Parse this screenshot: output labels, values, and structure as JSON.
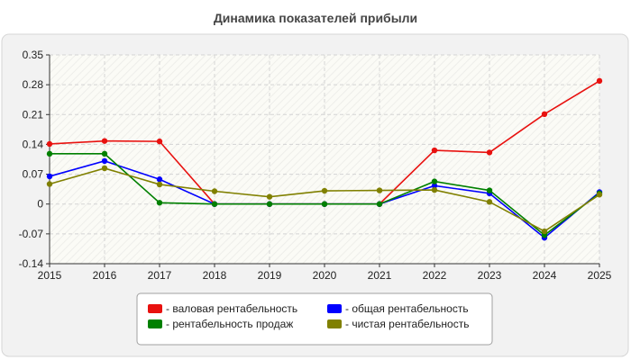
{
  "chart_data": {
    "type": "line",
    "title": "Динамика показателей прибыли",
    "xlabel": "",
    "ylabel": "",
    "x": [
      "2015",
      "2016",
      "2017",
      "2018",
      "2019",
      "2020",
      "2021",
      "2022",
      "2023",
      "2024",
      "2025"
    ],
    "ylim": [
      -0.14,
      0.35
    ],
    "yticks": [
      "0.35",
      "0.28",
      "0.21",
      "0.14",
      "0.07",
      "0",
      "-0.07",
      "-0.14"
    ],
    "ytick_values": [
      0.35,
      0.28,
      0.21,
      0.14,
      0.07,
      0,
      -0.07,
      -0.14
    ],
    "grid": true,
    "legend_position": "bottom",
    "series": [
      {
        "name": "- валовая рентабельность",
        "color": "#e8110f",
        "values": [
          0.141,
          0.148,
          0.147,
          0.0,
          0.0,
          0.0,
          0.0,
          0.126,
          0.121,
          0.211,
          0.289
        ]
      },
      {
        "name": "- общая рентабельность",
        "color": "#0000ff",
        "values": [
          0.065,
          0.101,
          0.058,
          0.0,
          0.0,
          0.0,
          0.0,
          0.043,
          0.025,
          -0.079,
          0.028
        ]
      },
      {
        "name": "- рентабельность продаж",
        "color": "#008000",
        "values": [
          0.118,
          0.118,
          0.003,
          0.0,
          0.0,
          0.0,
          0.0,
          0.053,
          0.032,
          -0.073,
          0.025
        ]
      },
      {
        "name": "- чистая рентабельность",
        "color": "#808000",
        "values": [
          0.047,
          0.084,
          0.046,
          0.03,
          0.017,
          0.031,
          0.032,
          0.033,
          0.005,
          -0.064,
          0.022
        ]
      }
    ]
  }
}
